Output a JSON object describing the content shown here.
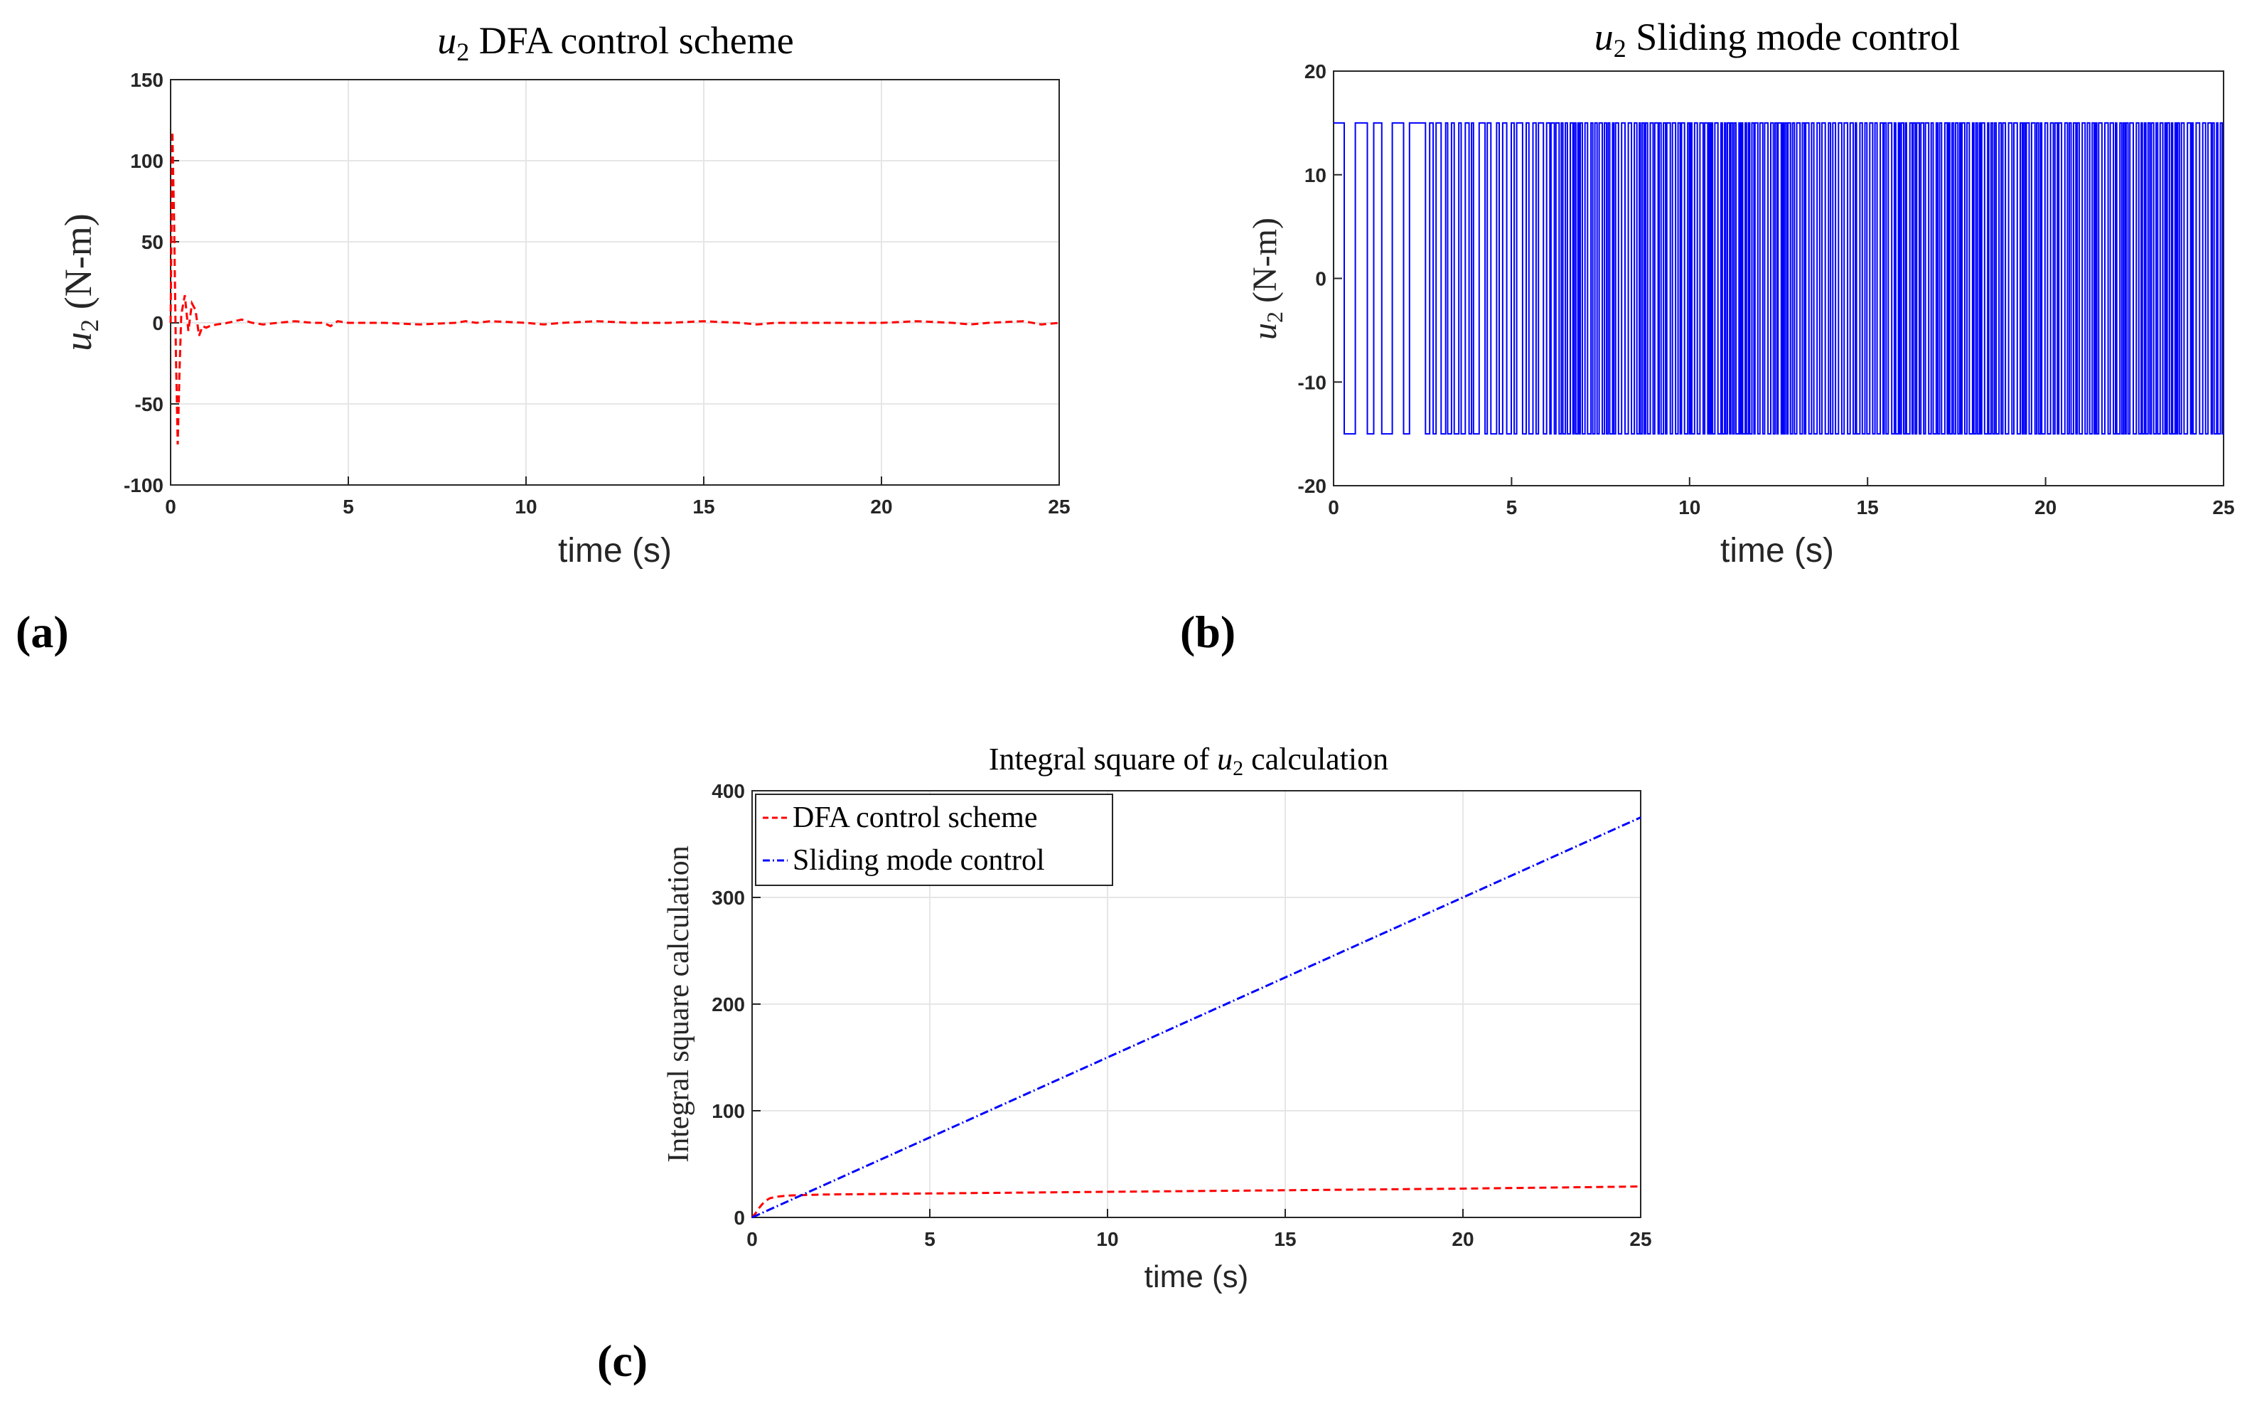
{
  "panels": {
    "a": {
      "label": "(a)"
    },
    "b": {
      "label": "(b)"
    },
    "c": {
      "label": "(c)"
    }
  },
  "colors": {
    "dfa": "#ff0000",
    "smc": "#0000ff",
    "grid": "#e6e6e6",
    "axis": "#262626"
  },
  "chart_data": [
    {
      "id": "a",
      "type": "line",
      "title": "u2 DFA control scheme",
      "title_parts": {
        "var": "u",
        "sub": "2",
        "rest": " DFA control scheme"
      },
      "xlabel": "time (s)",
      "ylabel_parts": {
        "var": "u",
        "sub": "2",
        "rest": " (N-m)"
      },
      "xlim": [
        0,
        25
      ],
      "ylim": [
        -100,
        150
      ],
      "xticks": [
        "0",
        "5",
        "10",
        "15",
        "20",
        "25"
      ],
      "yticks": [
        "-100",
        "-50",
        "0",
        "50",
        "100",
        "150"
      ],
      "grid": true,
      "series": [
        {
          "color": "#ff0000",
          "style": "dashed",
          "x": [
            0,
            0.05,
            0.1,
            0.15,
            0.2,
            0.25,
            0.3,
            0.4,
            0.5,
            0.6,
            0.7,
            0.8,
            0.9,
            1.0,
            1.1,
            1.3,
            1.6,
            2.0,
            2.3,
            2.6,
            3.0,
            3.5,
            4.0,
            4.3,
            4.5,
            4.7,
            5.0,
            6.0,
            7.0,
            8.0,
            8.3,
            8.6,
            9.0,
            10.0,
            10.5,
            11.0,
            12.0,
            13.0,
            14.0,
            15.0,
            16.0,
            16.5,
            17.0,
            18.0,
            19.0,
            20.0,
            21.0,
            22.0,
            22.5,
            23.0,
            24.0,
            24.5,
            25.0
          ],
          "y": [
            0,
            118,
            60,
            -20,
            -75,
            -30,
            5,
            17,
            -5,
            12,
            8,
            -8,
            -2,
            -3,
            -2,
            -1,
            0,
            2,
            0,
            -1,
            0,
            1,
            0,
            0,
            -2,
            1,
            0,
            0,
            -1,
            0,
            1,
            0,
            1,
            0,
            -1,
            0,
            1,
            0,
            0,
            1,
            0,
            -1,
            0,
            0,
            0,
            0,
            1,
            0,
            -1,
            0,
            1,
            -1,
            0
          ]
        }
      ]
    },
    {
      "id": "b",
      "type": "line",
      "title": "u2 Sliding mode control",
      "title_parts": {
        "var": "u",
        "sub": "2",
        "rest": " Sliding mode control"
      },
      "xlabel": "time (s)",
      "ylabel_parts": {
        "var": "u",
        "sub": "2",
        "rest": " (N-m)"
      },
      "xlim": [
        0,
        25
      ],
      "ylim": [
        -20,
        20
      ],
      "xticks": [
        "0",
        "5",
        "10",
        "15",
        "20",
        "25"
      ],
      "yticks": [
        "-20",
        "-10",
        "0",
        "10",
        "20"
      ],
      "grid": false,
      "series": [
        {
          "color": "#0000ff",
          "style": "solid",
          "description_level": 15,
          "switching_start": 0.3,
          "switching_end": 25,
          "levels": [
            15,
            -15
          ]
        }
      ]
    },
    {
      "id": "c",
      "type": "line",
      "title": "Integral square of u2 calculation",
      "title_parts": {
        "pre": "Integral square of ",
        "var": "u",
        "sub": "2",
        "rest": " calculation"
      },
      "xlabel": "time (s)",
      "ylabel": "Integral square calculation",
      "xlim": [
        0,
        25
      ],
      "ylim": [
        0,
        400
      ],
      "xticks": [
        "0",
        "5",
        "10",
        "15",
        "20",
        "25"
      ],
      "yticks": [
        "0",
        "100",
        "200",
        "300",
        "400"
      ],
      "grid": true,
      "legend": "top-left",
      "series": [
        {
          "name": "DFA control scheme",
          "color": "#ff0000",
          "style": "dashed",
          "x": [
            0,
            0.1,
            0.2,
            0.3,
            0.4,
            0.5,
            0.7,
            1.0,
            1.5,
            2.0,
            5.0,
            10.0,
            15.0,
            20.0,
            25.0
          ],
          "y": [
            0,
            4,
            9,
            13,
            16,
            18,
            19.5,
            20.5,
            21,
            21.5,
            22.5,
            24,
            25.5,
            27,
            29
          ]
        },
        {
          "name": "Sliding mode control",
          "color": "#0000ff",
          "style": "dashdot",
          "x": [
            0,
            25
          ],
          "y": [
            0,
            375
          ]
        }
      ]
    }
  ]
}
